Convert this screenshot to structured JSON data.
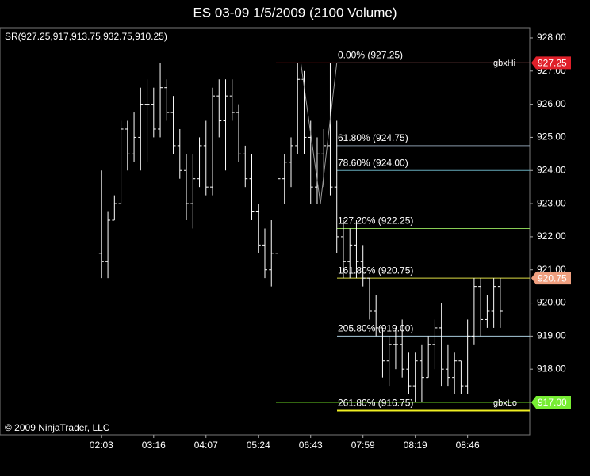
{
  "chart_data": {
    "type": "ohlc",
    "title": "ES 03-09  1/5/2009 (2100 Volume)",
    "subtitle": "SR(927.25,917,913.75,932.75,910.25)",
    "copyright": "© 2009 NinjaTrader, LLC",
    "x": [
      0,
      1,
      2,
      3,
      4,
      5,
      6,
      7,
      8,
      9,
      10,
      11,
      12,
      13,
      14,
      15,
      16,
      17,
      18,
      19,
      20,
      21,
      22,
      23,
      24,
      25,
      26,
      27,
      28,
      29,
      30,
      31,
      32,
      33,
      34,
      35,
      36,
      37,
      38,
      39,
      40,
      41,
      42,
      43,
      44,
      45,
      46,
      47,
      48,
      49,
      50,
      51,
      52,
      53,
      54,
      55,
      56,
      57,
      58,
      59,
      60,
      61
    ],
    "xlim": [
      -15.5,
      65.5
    ],
    "xticks": [
      {
        "value": 0,
        "label": "02:03"
      },
      {
        "value": 8,
        "label": "03:16"
      },
      {
        "value": 16,
        "label": "04:07"
      },
      {
        "value": 24,
        "label": "05:24"
      },
      {
        "value": 32,
        "label": "06:43"
      },
      {
        "value": 40,
        "label": "07:59"
      },
      {
        "value": 48,
        "label": "08:19"
      },
      {
        "value": 56,
        "label": "08:46"
      }
    ],
    "ylim": [
      916.02,
      928.31
    ],
    "yticks": [
      {
        "value": 917,
        "label": "917.00"
      },
      {
        "value": 918,
        "label": "918.00"
      },
      {
        "value": 919,
        "label": "919.00"
      },
      {
        "value": 920,
        "label": "920.00"
      },
      {
        "value": 921,
        "label": "921.00"
      },
      {
        "value": 922,
        "label": "922.00"
      },
      {
        "value": 923,
        "label": "923.00"
      },
      {
        "value": 924,
        "label": "924.00"
      },
      {
        "value": 925,
        "label": "925.00"
      },
      {
        "value": 926,
        "label": "926.00"
      },
      {
        "value": 927,
        "label": "927.00"
      },
      {
        "value": 928,
        "label": "928.00"
      }
    ],
    "color": "#ffffff",
    "open": [
      921.5,
      921.25,
      922.5,
      923.0,
      925.25,
      924.5,
      925.0,
      926.0,
      926.0,
      925.25,
      926.5,
      925.75,
      924.75,
      924.0,
      923.0,
      923.75,
      924.75,
      923.5,
      926.25,
      925.5,
      926.25,
      925.75,
      924.5,
      923.75,
      922.75,
      921.75,
      921.0,
      921.5,
      923.75,
      924.25,
      924.75,
      926.75,
      925.0,
      923.5,
      924.5,
      924.75,
      923.5,
      922.0,
      921.25,
      921.75,
      921.25,
      920.75,
      919.75,
      919.25,
      918.25,
      918.75,
      918.75,
      918.0,
      917.5,
      918.25,
      917.75,
      918.75,
      919.25,
      918.0,
      917.75,
      918.25,
      917.5,
      919.0,
      920.5,
      919.5,
      919.75,
      920.5
    ],
    "high": [
      924.0,
      922.75,
      923.25,
      925.5,
      925.5,
      925.75,
      926.5,
      926.75,
      926.5,
      927.25,
      926.75,
      926.25,
      925.25,
      924.5,
      924.5,
      925.0,
      925.5,
      926.5,
      926.75,
      926.75,
      926.75,
      926.0,
      924.75,
      924.5,
      923.0,
      922.25,
      922.5,
      924.0,
      924.5,
      925.0,
      927.25,
      927.0,
      925.5,
      925.0,
      925.25,
      927.25,
      925.5,
      922.5,
      922.25,
      922.5,
      921.75,
      920.75,
      920.25,
      919.25,
      919.0,
      919.25,
      919.5,
      918.5,
      918.5,
      918.75,
      919.0,
      919.5,
      920.0,
      918.75,
      918.5,
      918.25,
      919.5,
      920.75,
      920.75,
      920.25,
      920.75,
      920.75
    ],
    "low": [
      920.75,
      920.75,
      922.5,
      923.0,
      924.0,
      924.25,
      924.0,
      924.25,
      925.0,
      925.0,
      925.5,
      924.5,
      923.75,
      922.5,
      922.25,
      923.5,
      923.25,
      923.25,
      925.0,
      924.0,
      925.5,
      924.25,
      923.5,
      922.5,
      921.5,
      920.75,
      920.5,
      921.25,
      923.0,
      923.5,
      924.5,
      924.5,
      923.0,
      923.0,
      923.5,
      923.25,
      921.5,
      920.75,
      920.75,
      920.75,
      920.5,
      919.5,
      919.0,
      917.75,
      917.5,
      918.0,
      917.75,
      917.25,
      917.0,
      917.0,
      917.75,
      918.0,
      917.5,
      917.5,
      917.25,
      917.25,
      917.25,
      918.75,
      919.0,
      919.25,
      919.25,
      919.25
    ],
    "close": [
      921.25,
      922.5,
      923.0,
      925.25,
      924.5,
      925.0,
      926.0,
      926.0,
      925.25,
      926.5,
      925.75,
      924.75,
      924.0,
      923.0,
      923.75,
      924.75,
      923.5,
      926.25,
      925.5,
      926.25,
      925.75,
      924.5,
      923.75,
      922.75,
      921.75,
      921.0,
      921.5,
      923.75,
      924.25,
      924.75,
      926.75,
      925.0,
      923.5,
      924.5,
      924.75,
      923.5,
      922.0,
      921.25,
      921.75,
      921.25,
      920.75,
      919.75,
      919.25,
      918.25,
      918.75,
      918.75,
      918.0,
      917.5,
      918.25,
      917.75,
      918.75,
      919.25,
      918.0,
      917.75,
      918.25,
      917.5,
      919.0,
      920.5,
      919.5,
      919.75,
      920.5,
      919.75
    ],
    "zigzag": {
      "x": [
        30.5,
        33.5,
        36
      ],
      "values": [
        927.25,
        923.0,
        927.25
      ],
      "color": "#9a9a9a"
    },
    "levels": [
      {
        "value": 927.25,
        "label": "0.00% (927.25)",
        "color": "#8a8a8a"
      },
      {
        "value": 924.75,
        "label": "61.80% (924.75)",
        "color": "#8899aa"
      },
      {
        "value": 924.0,
        "label": "78.60% (924.00)",
        "color": "#66aabb"
      },
      {
        "value": 922.25,
        "label": "127.20% (922.25)",
        "color": "#88cc55"
      },
      {
        "value": 920.75,
        "label": "161.80% (920.75)",
        "color": "#dddd44"
      },
      {
        "value": 919.0,
        "label": "205.80% (919.00)",
        "color": "#aaccdd"
      },
      {
        "value": 916.75,
        "label": "261.80% (916.75)",
        "color": "#eeee22"
      }
    ],
    "gbx_lines": [
      {
        "name": "gbxHi",
        "value": 927.25,
        "color": "#d01818"
      },
      {
        "name": "gbxLo",
        "value": 917.0,
        "color": "#66cc22"
      }
    ],
    "price_markers": [
      {
        "value": 927.25,
        "label": "927.25",
        "color": "#e0202a"
      },
      {
        "value": 920.75,
        "label": "920.75",
        "color": "#f0a080"
      },
      {
        "value": 917.0,
        "label": "917.00",
        "color": "#77ee33"
      }
    ]
  }
}
